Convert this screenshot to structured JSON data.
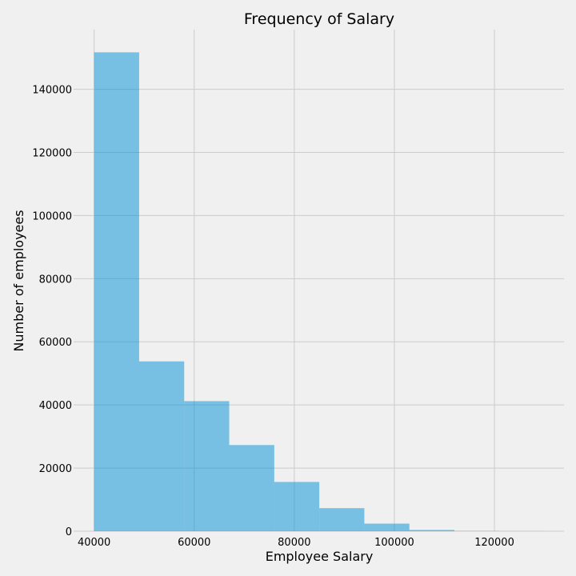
{
  "chart_data": {
    "type": "bar",
    "title": "Frequency of Salary",
    "xlabel": "Employee Salary",
    "ylabel": "Number of employees",
    "grid": true,
    "bar_color": "#008fd5",
    "bar_opacity": 0.5,
    "background_color": "#f0f0f0",
    "grid_color": "#cbcbcb",
    "xlim": [
      35900,
      133900
    ],
    "ylim": [
      0,
      158900
    ],
    "x_ticks": [
      40000,
      60000,
      80000,
      100000,
      120000
    ],
    "x_tick_labels": [
      "40000",
      "60000",
      "80000",
      "100000",
      "120000"
    ],
    "y_ticks": [
      0,
      20000,
      40000,
      60000,
      80000,
      100000,
      120000,
      140000
    ],
    "y_tick_labels": [
      "0",
      "20000",
      "40000",
      "60000",
      "80000",
      "100000",
      "120000",
      "140000"
    ],
    "bins": [
      {
        "start": 40000,
        "end": 49000,
        "value": 151700
      },
      {
        "start": 49000,
        "end": 58000,
        "value": 53800
      },
      {
        "start": 58000,
        "end": 67000,
        "value": 41200
      },
      {
        "start": 67000,
        "end": 76000,
        "value": 27300
      },
      {
        "start": 76000,
        "end": 85000,
        "value": 15600
      },
      {
        "start": 85000,
        "end": 94000,
        "value": 7300
      },
      {
        "start": 94000,
        "end": 103000,
        "value": 2400
      },
      {
        "start": 103000,
        "end": 112000,
        "value": 400
      },
      {
        "start": 112000,
        "end": 121000,
        "value": 70
      },
      {
        "start": 121000,
        "end": 130000,
        "value": 20
      }
    ]
  }
}
